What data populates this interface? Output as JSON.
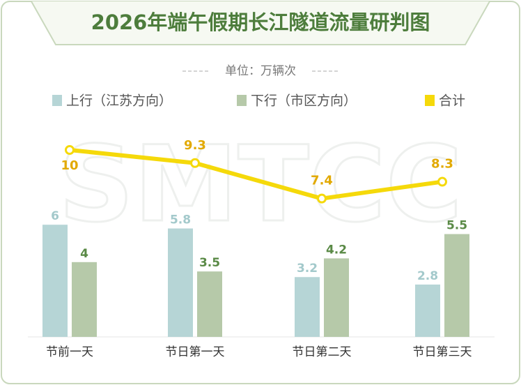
{
  "chart_data": {
    "type": "bar_line",
    "title": "2026年端午假期长江隧道流量研判图",
    "subtitle": "单位：万辆次",
    "watermark": "SMTCC",
    "categories": [
      "节前一天",
      "节日第一天",
      "节日第二天",
      "节日第三天"
    ],
    "series": [
      {
        "name": "上行（江苏方向）",
        "type": "bar",
        "color": "#b6d5d6",
        "label_color": "#a3c9cb",
        "values": [
          6,
          5.8,
          3.2,
          2.8
        ]
      },
      {
        "name": "下行（市区方向）",
        "type": "bar",
        "color": "#b6c9a9",
        "label_color": "#5a8a46",
        "values": [
          4,
          3.5,
          4.2,
          5.5
        ]
      },
      {
        "name": "合计",
        "type": "line",
        "color": "#f5d90a",
        "label_color": "#e2a900",
        "values": [
          10,
          9.3,
          7.4,
          8.3
        ]
      }
    ],
    "ylim": [
      0,
      10
    ]
  }
}
